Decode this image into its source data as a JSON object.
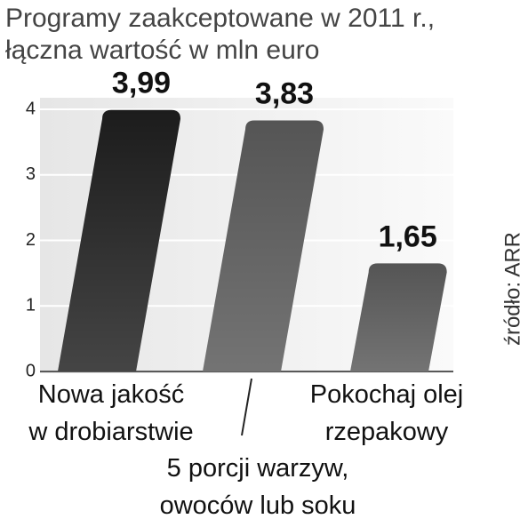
{
  "chart_data": {
    "type": "bar",
    "title": "Programy zaakceptowane w 2011 r.,",
    "subtitle": "łączna wartość w mln euro",
    "categories": [
      "Nowa jakość\nw drobiarstwie",
      "5 porcji warzyw,\nowoców lub soku",
      "Pokochaj olej\nrzepakowy"
    ],
    "values": [
      3.99,
      3.83,
      1.65
    ],
    "value_labels": [
      "3,99",
      "3,83",
      "1,65"
    ],
    "colors": [
      "#1c1c1c",
      "#555555",
      "#555555"
    ],
    "ylim": [
      0,
      4
    ],
    "yticks": [
      0,
      1,
      2,
      3,
      4
    ],
    "grid": true,
    "source": "źródło: ARR"
  }
}
